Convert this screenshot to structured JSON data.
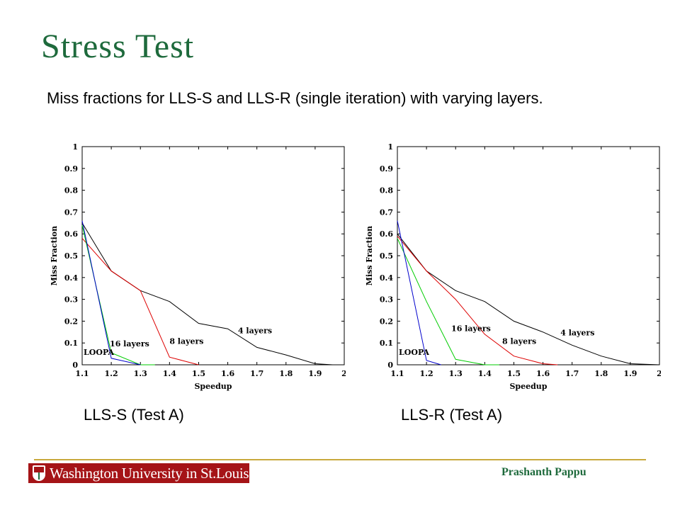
{
  "slide": {
    "title": "Stress Test",
    "subtitle": "Miss fractions for LLS-S and LLS-R (single iteration) with varying layers.",
    "caption_left": "LLS-S (Test A)",
    "caption_right": "LLS-R (Test A)",
    "logo_text": "Washington University in St.Louis",
    "author": "Prashanth Pappu",
    "colors": {
      "title": "#1e6a3c",
      "logo_bg": "#a51417",
      "rule": "#c9a93d",
      "author": "#1e6a3c"
    }
  },
  "chart_data": [
    {
      "type": "line",
      "xlabel": "Speedup",
      "ylabel": "Miss Fraction",
      "xlim": [
        1.1,
        2
      ],
      "ylim": [
        0,
        1
      ],
      "xticks": [
        "1.1",
        "1.2",
        "1.3",
        "1.4",
        "1.5",
        "1.6",
        "1.7",
        "1.8",
        "1.9",
        "2"
      ],
      "yticks": [
        "0",
        "0.1",
        "0.2",
        "0.3",
        "0.4",
        "0.5",
        "0.6",
        "0.7",
        "0.8",
        "0.9",
        "1"
      ],
      "grid": false,
      "series": [
        {
          "name": "4 layers",
          "color": "#000000",
          "x": [
            1.1,
            1.2,
            1.3,
            1.4,
            1.5,
            1.6,
            1.7,
            1.8,
            1.9,
            1.96
          ],
          "y": [
            0.65,
            0.43,
            0.34,
            0.29,
            0.19,
            0.165,
            0.08,
            0.045,
            0.005,
            0.0
          ]
        },
        {
          "name": "8 layers",
          "color": "#dd0000",
          "x": [
            1.1,
            1.2,
            1.3,
            1.4,
            1.5
          ],
          "y": [
            0.58,
            0.43,
            0.34,
            0.035,
            0.0
          ]
        },
        {
          "name": "16 layers",
          "color": "#00cc00",
          "x": [
            1.1,
            1.2,
            1.3,
            1.35
          ],
          "y": [
            0.64,
            0.055,
            0.0,
            0.0
          ]
        },
        {
          "name": "LOOPA",
          "color": "#0000cc",
          "x": [
            1.1,
            1.2,
            1.3
          ],
          "y": [
            0.66,
            0.03,
            0.0
          ]
        }
      ],
      "annotations": [
        {
          "text": "4 layers",
          "x": 1.635,
          "y": 0.145
        },
        {
          "text": "8 layers",
          "x": 1.4,
          "y": 0.095
        },
        {
          "text": "16 layers",
          "x": 1.195,
          "y": 0.085
        },
        {
          "text": "LOOPA",
          "x": 1.105,
          "y": 0.045
        }
      ]
    },
    {
      "type": "line",
      "xlabel": "Speedup",
      "ylabel": "Miss Fraction",
      "xlim": [
        1.1,
        2
      ],
      "ylim": [
        0,
        1
      ],
      "xticks": [
        "1.1",
        "1.2",
        "1.3",
        "1.4",
        "1.5",
        "1.6",
        "1.7",
        "1.8",
        "1.9",
        "2"
      ],
      "yticks": [
        "0",
        "0.1",
        "0.2",
        "0.3",
        "0.4",
        "0.5",
        "0.6",
        "0.7",
        "0.8",
        "0.9",
        "1"
      ],
      "grid": false,
      "series": [
        {
          "name": "4 layers",
          "color": "#000000",
          "x": [
            1.1,
            1.2,
            1.3,
            1.4,
            1.5,
            1.6,
            1.7,
            1.8,
            1.9,
            2.0
          ],
          "y": [
            0.6,
            0.43,
            0.34,
            0.29,
            0.2,
            0.15,
            0.09,
            0.04,
            0.005,
            0.0
          ]
        },
        {
          "name": "8 layers",
          "color": "#dd0000",
          "x": [
            1.1,
            1.2,
            1.3,
            1.4,
            1.5,
            1.6,
            1.65
          ],
          "y": [
            0.59,
            0.43,
            0.3,
            0.14,
            0.04,
            0.005,
            0.0
          ]
        },
        {
          "name": "16 layers",
          "color": "#00cc00",
          "x": [
            1.1,
            1.2,
            1.3,
            1.4,
            1.45
          ],
          "y": [
            0.58,
            0.29,
            0.025,
            0.0,
            0.0
          ]
        },
        {
          "name": "LOOPA",
          "color": "#0000cc",
          "x": [
            1.1,
            1.2,
            1.25
          ],
          "y": [
            0.66,
            0.02,
            0.0
          ]
        }
      ],
      "annotations": [
        {
          "text": "4 layers",
          "x": 1.66,
          "y": 0.135
        },
        {
          "text": "8 layers",
          "x": 1.46,
          "y": 0.095
        },
        {
          "text": "16 layers",
          "x": 1.285,
          "y": 0.155
        },
        {
          "text": "LOOPA",
          "x": 1.105,
          "y": 0.045
        }
      ]
    }
  ]
}
